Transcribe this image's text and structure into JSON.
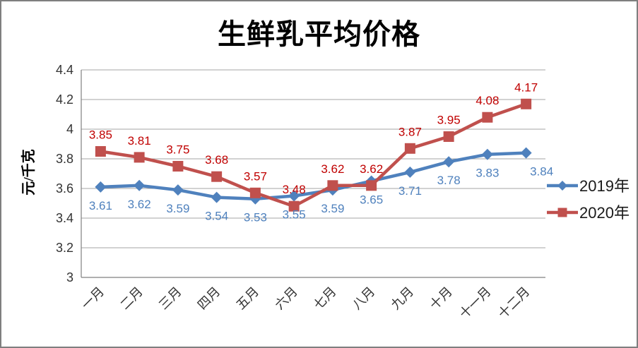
{
  "window": {
    "background": "#FFFFFF",
    "border_color": "#7F7F7F"
  },
  "chart_data": {
    "type": "line",
    "title": "生鲜乳平均价格",
    "xlabel": "",
    "ylabel": "元/千克",
    "categories": [
      "一月",
      "二月",
      "三月",
      "四月",
      "五月",
      "六月",
      "七月",
      "八月",
      "九月",
      "十月",
      "十一月",
      "十二月"
    ],
    "series": [
      {
        "name": "2019年",
        "values": [
          3.61,
          3.62,
          3.59,
          3.54,
          3.53,
          3.55,
          3.59,
          3.65,
          3.71,
          3.78,
          3.83,
          3.84
        ],
        "color": "#4F81BD",
        "marker": "diamond",
        "label_color": "#4F81BD",
        "label_position": "below",
        "label_dx": [
          0,
          0,
          0,
          0,
          0,
          0,
          0,
          0,
          0,
          0,
          0,
          22
        ]
      },
      {
        "name": "2020年",
        "values": [
          3.85,
          3.81,
          3.75,
          3.68,
          3.57,
          3.48,
          3.62,
          3.62,
          3.87,
          3.95,
          4.08,
          4.17
        ],
        "color": "#C0504D",
        "marker": "square",
        "label_color": "#C00000",
        "label_position": "above",
        "label_dx": [
          0,
          0,
          0,
          0,
          0,
          0,
          0,
          0,
          0,
          0,
          0,
          0
        ]
      }
    ],
    "ylim": [
      3,
      4.4
    ],
    "ytick_labels": [
      "3",
      "3.2",
      "3.4",
      "3.6",
      "3.8",
      "4",
      "4.2",
      "4.4"
    ],
    "grid": true,
    "legend_position": "right",
    "axis_color": "#808080",
    "grid_color": "#A6A6A6",
    "tick_label_color": "#333333",
    "legend_text_color": "#1A1A1A"
  }
}
